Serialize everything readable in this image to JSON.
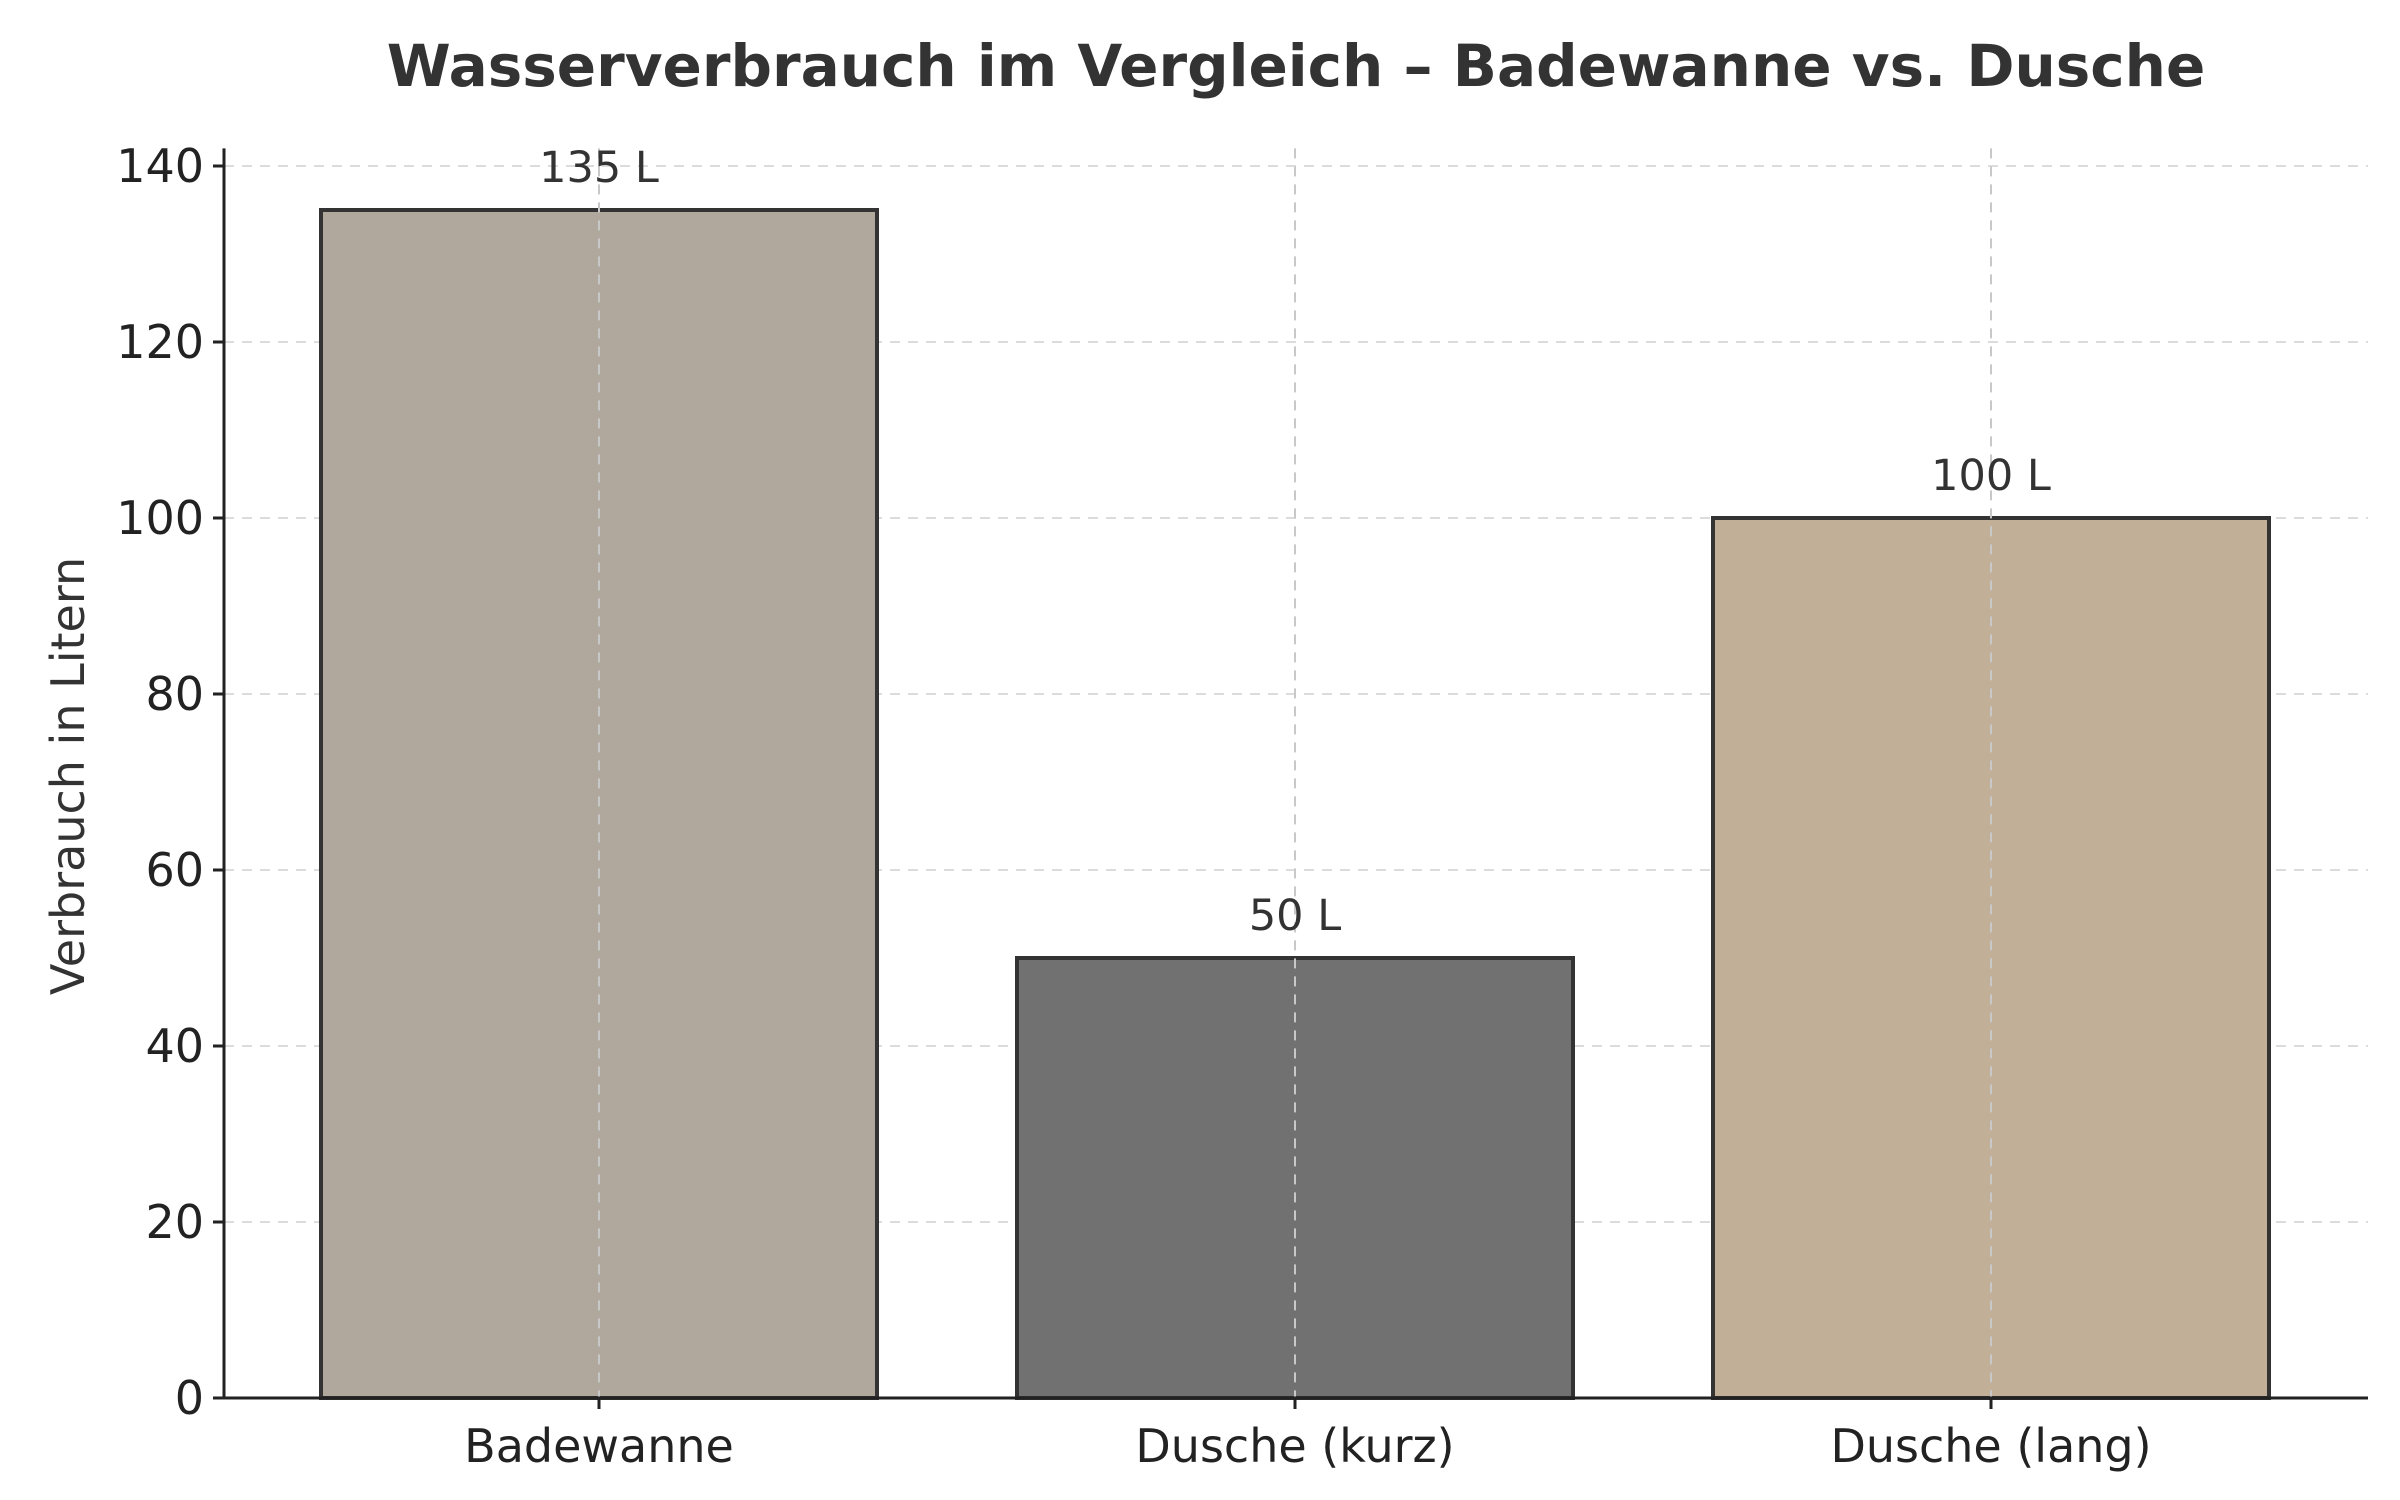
{
  "chart_data": {
    "type": "bar",
    "title": "Wasserverbrauch im Vergleich – Badewanne vs. Dusche",
    "xlabel": "",
    "ylabel": "Verbrauch in Litern",
    "categories": [
      "Badewanne",
      "Dusche (kurz)",
      "Dusche (lang)"
    ],
    "values": [
      135,
      50,
      100
    ],
    "value_labels": [
      "135 L",
      "50 L",
      "100 L"
    ],
    "colors": [
      "#b0a79d",
      "#717171",
      "#c2af98"
    ],
    "edge_color": "#333333",
    "ylim": [
      0,
      142
    ],
    "yticks": [
      0,
      20,
      40,
      60,
      80,
      100,
      120,
      140
    ],
    "grid": true,
    "legend": "none"
  }
}
